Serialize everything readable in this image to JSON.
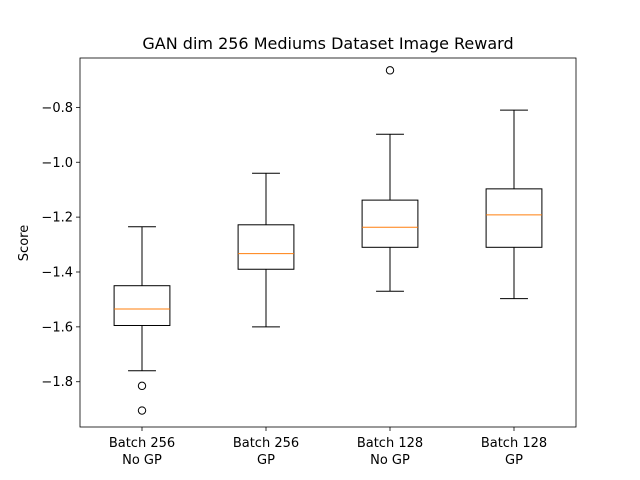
{
  "chart_data": {
    "type": "box",
    "title": "GAN dim 256 Mediums Dataset Image Reward",
    "xlabel": "",
    "ylabel": "Score",
    "ylim": [
      -1.965,
      -0.62
    ],
    "yticks": [
      -1.8,
      -1.6,
      -1.4,
      -1.2,
      -1.0,
      -0.8
    ],
    "ytick_labels": [
      "−1.8",
      "−1.6",
      "−1.4",
      "−1.2",
      "−1.0",
      "−0.8"
    ],
    "grid": false,
    "colors": {
      "box": "#000000",
      "median": "#ff7f0e",
      "background": "#ffffff"
    },
    "categories": [
      {
        "line1": "Batch 256",
        "line2": "No GP"
      },
      {
        "line1": "Batch 256",
        "line2": "GP"
      },
      {
        "line1": "Batch 128",
        "line2": "No GP"
      },
      {
        "line1": "Batch 128",
        "line2": "GP"
      }
    ],
    "boxes": [
      {
        "whisker_low": -1.76,
        "q1": -1.595,
        "median": -1.535,
        "q3": -1.45,
        "whisker_high": -1.235,
        "outliers": [
          -1.815,
          -1.905
        ]
      },
      {
        "whisker_low": -1.6,
        "q1": -1.39,
        "median": -1.333,
        "q3": -1.228,
        "whisker_high": -1.04,
        "outliers": []
      },
      {
        "whisker_low": -1.47,
        "q1": -1.31,
        "median": -1.237,
        "q3": -1.138,
        "whisker_high": -0.898,
        "outliers": [
          -0.665
        ]
      },
      {
        "whisker_low": -1.497,
        "q1": -1.31,
        "median": -1.192,
        "q3": -1.097,
        "whisker_high": -0.81,
        "outliers": []
      }
    ]
  }
}
